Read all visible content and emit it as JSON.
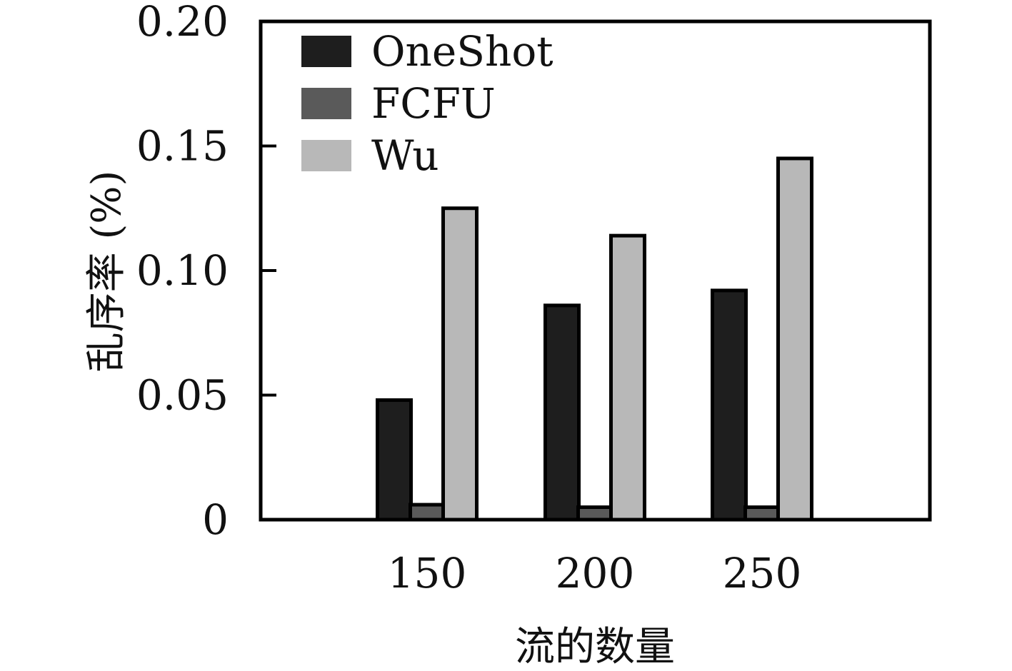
{
  "chart_data": {
    "type": "bar",
    "categories": [
      "150",
      "200",
      "250"
    ],
    "series": [
      {
        "name": "OneShot",
        "values": [
          0.048,
          0.086,
          0.092
        ],
        "color": "#1e1e1e"
      },
      {
        "name": "FCFU",
        "values": [
          0.006,
          0.005,
          0.005
        ],
        "color": "#5a5a5a"
      },
      {
        "name": "Wu",
        "values": [
          0.125,
          0.114,
          0.145
        ],
        "color": "#b8b8b8"
      }
    ],
    "xlabel": "流的数量",
    "ylabel": "乱序率 (%)",
    "ylim": [
      0,
      0.2
    ],
    "yticks": [
      "0",
      "0.05",
      "0.10",
      "0.15",
      "0.20"
    ],
    "grid": false,
    "legend_position": "top-left"
  }
}
